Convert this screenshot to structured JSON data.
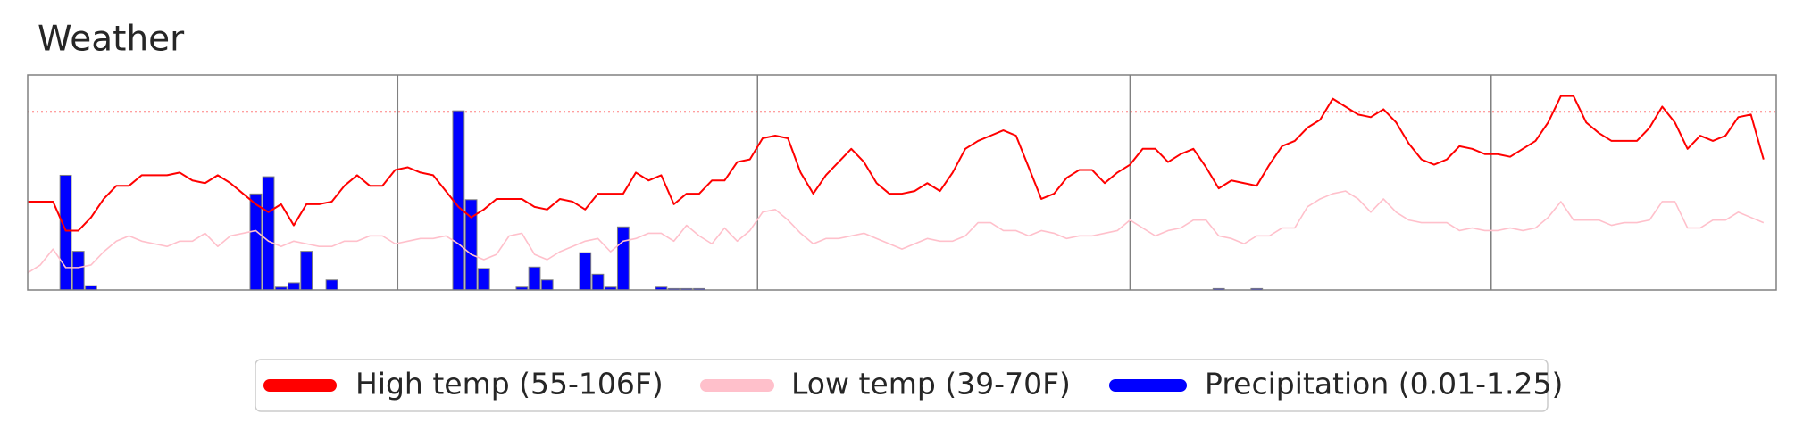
{
  "chart_data": {
    "type": "combo",
    "title": "Weather",
    "xlim": [
      0,
      138
    ],
    "ylim": [
      32.5,
      114
    ],
    "y2lim": [
      0,
      1.5
    ],
    "dividers": [
      29.2,
      57.6,
      87,
      115.5
    ],
    "reference_line": 100,
    "series": [
      {
        "name": "High temp (55-106F)",
        "type": "line",
        "color": "#ff0000",
        "values": [
          66,
          66,
          66,
          55,
          55,
          60,
          67,
          72,
          72,
          76,
          76,
          76,
          77,
          74,
          73,
          76,
          73,
          69,
          65,
          62,
          65,
          57,
          65,
          65,
          66,
          72,
          76,
          72,
          72,
          78,
          79,
          77,
          76,
          70,
          64,
          60,
          63,
          67,
          67,
          67,
          64,
          63,
          67,
          66,
          63,
          69,
          69,
          69,
          77,
          74,
          76,
          65,
          69,
          69,
          74,
          74,
          81,
          82,
          90,
          91,
          90,
          77,
          69,
          76,
          81,
          86,
          81,
          73,
          69,
          69,
          70,
          73,
          70,
          77,
          86,
          89,
          91,
          93,
          91,
          79,
          67,
          69,
          75,
          78,
          78,
          73,
          77,
          80,
          86,
          86,
          81,
          84,
          86,
          79,
          71,
          74,
          73,
          72,
          80,
          87,
          89,
          94,
          97,
          105,
          102,
          99,
          98,
          101,
          96,
          88,
          82,
          80,
          82,
          87,
          86,
          84,
          84,
          83,
          86,
          89,
          96,
          106,
          106,
          96,
          92,
          89,
          89,
          89,
          94,
          102,
          96,
          86,
          91,
          89,
          91,
          98,
          99,
          82
        ]
      },
      {
        "name": "Low temp (39-70F)",
        "type": "line",
        "color": "#ffc0cb",
        "values": [
          39,
          42,
          48,
          41,
          41,
          42,
          47,
          51,
          53,
          51,
          50,
          49,
          51,
          51,
          54,
          49,
          53,
          54,
          55,
          51,
          49,
          51,
          50,
          49,
          49,
          51,
          51,
          53,
          53,
          50,
          51,
          52,
          52,
          53,
          50,
          46,
          44,
          46,
          53,
          54,
          46,
          44,
          47,
          49,
          51,
          52,
          47,
          51,
          52,
          54,
          54,
          51,
          57,
          53,
          50,
          56,
          51,
          55,
          62,
          63,
          59,
          54,
          50,
          52,
          52,
          53,
          54,
          52,
          50,
          48,
          50,
          52,
          51,
          51,
          53,
          58,
          58,
          55,
          55,
          53,
          55,
          54,
          52,
          53,
          53,
          54,
          55,
          59,
          56,
          53,
          55,
          56,
          59,
          59,
          53,
          52,
          50,
          53,
          53,
          56,
          56,
          64,
          67,
          69,
          70,
          67,
          62,
          67,
          62,
          59,
          58,
          58,
          58,
          55,
          56,
          55,
          55,
          56,
          55,
          56,
          60,
          66,
          59,
          59,
          59,
          57,
          58,
          58,
          59,
          66,
          66,
          56,
          56,
          59,
          59,
          62,
          60,
          58
        ]
      },
      {
        "name": "Precipitation (0.01-1.25)",
        "type": "bar",
        "axis": "y2",
        "color": "#0000ff",
        "values": [
          0,
          0,
          0,
          0.8,
          0.27,
          0.03,
          0,
          0,
          0,
          0,
          0,
          0,
          0,
          0,
          0,
          0,
          0,
          0,
          0.67,
          0.79,
          0.02,
          0.05,
          0.27,
          0,
          0.07,
          0,
          0,
          0,
          0,
          0,
          0,
          0,
          0,
          0,
          1.25,
          0.63,
          0.15,
          0,
          0,
          0.02,
          0.16,
          0.07,
          0,
          0,
          0.26,
          0.11,
          0.02,
          0.44,
          0,
          0,
          0.02,
          0.01,
          0.01,
          0.01,
          0,
          0,
          0,
          0,
          0,
          0,
          0,
          0,
          0,
          0,
          0,
          0,
          0,
          0,
          0,
          0,
          0,
          0,
          0,
          0,
          0,
          0,
          0,
          0,
          0,
          0,
          0,
          0,
          0,
          0,
          0,
          0,
          0,
          0,
          0,
          0,
          0,
          0,
          0,
          0,
          0.01,
          0,
          0,
          0.01,
          0,
          0,
          0,
          0,
          0,
          0,
          0,
          0,
          0,
          0,
          0,
          0,
          0,
          0,
          0,
          0,
          0,
          0,
          0,
          0,
          0,
          0,
          0,
          0,
          0,
          0,
          0,
          0,
          0,
          0,
          0,
          0,
          0,
          0,
          0,
          0,
          0,
          0
        ]
      }
    ],
    "legend": "bottom"
  }
}
